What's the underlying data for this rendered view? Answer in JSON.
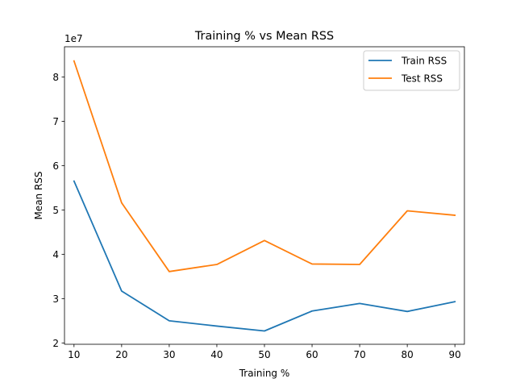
{
  "chart_data": {
    "type": "line",
    "title": "Training % vs Mean RSS",
    "xlabel": "Training %",
    "ylabel": "Mean RSS",
    "y_offset_label": "1e7",
    "x": [
      10,
      20,
      30,
      40,
      50,
      60,
      70,
      80,
      90
    ],
    "xlim": [
      8,
      92
    ],
    "ylim": [
      19700000,
      86800000
    ],
    "xticks": [
      10,
      20,
      30,
      40,
      50,
      60,
      70,
      80,
      90
    ],
    "yticks": [
      20000000,
      30000000,
      40000000,
      50000000,
      60000000,
      70000000,
      80000000
    ],
    "ytick_labels": [
      "2",
      "3",
      "4",
      "5",
      "6",
      "7",
      "8"
    ],
    "grid": false,
    "legend_position": "top-right",
    "series": [
      {
        "name": "Train RSS",
        "color": "#1f77b4",
        "values": [
          56500000,
          31700000,
          25000000,
          23800000,
          22700000,
          27200000,
          28900000,
          27100000,
          29300000
        ]
      },
      {
        "name": "Test RSS",
        "color": "#ff7f0e",
        "values": [
          83600000,
          51600000,
          36100000,
          37700000,
          43100000,
          37800000,
          37700000,
          49800000,
          48800000
        ]
      }
    ]
  }
}
